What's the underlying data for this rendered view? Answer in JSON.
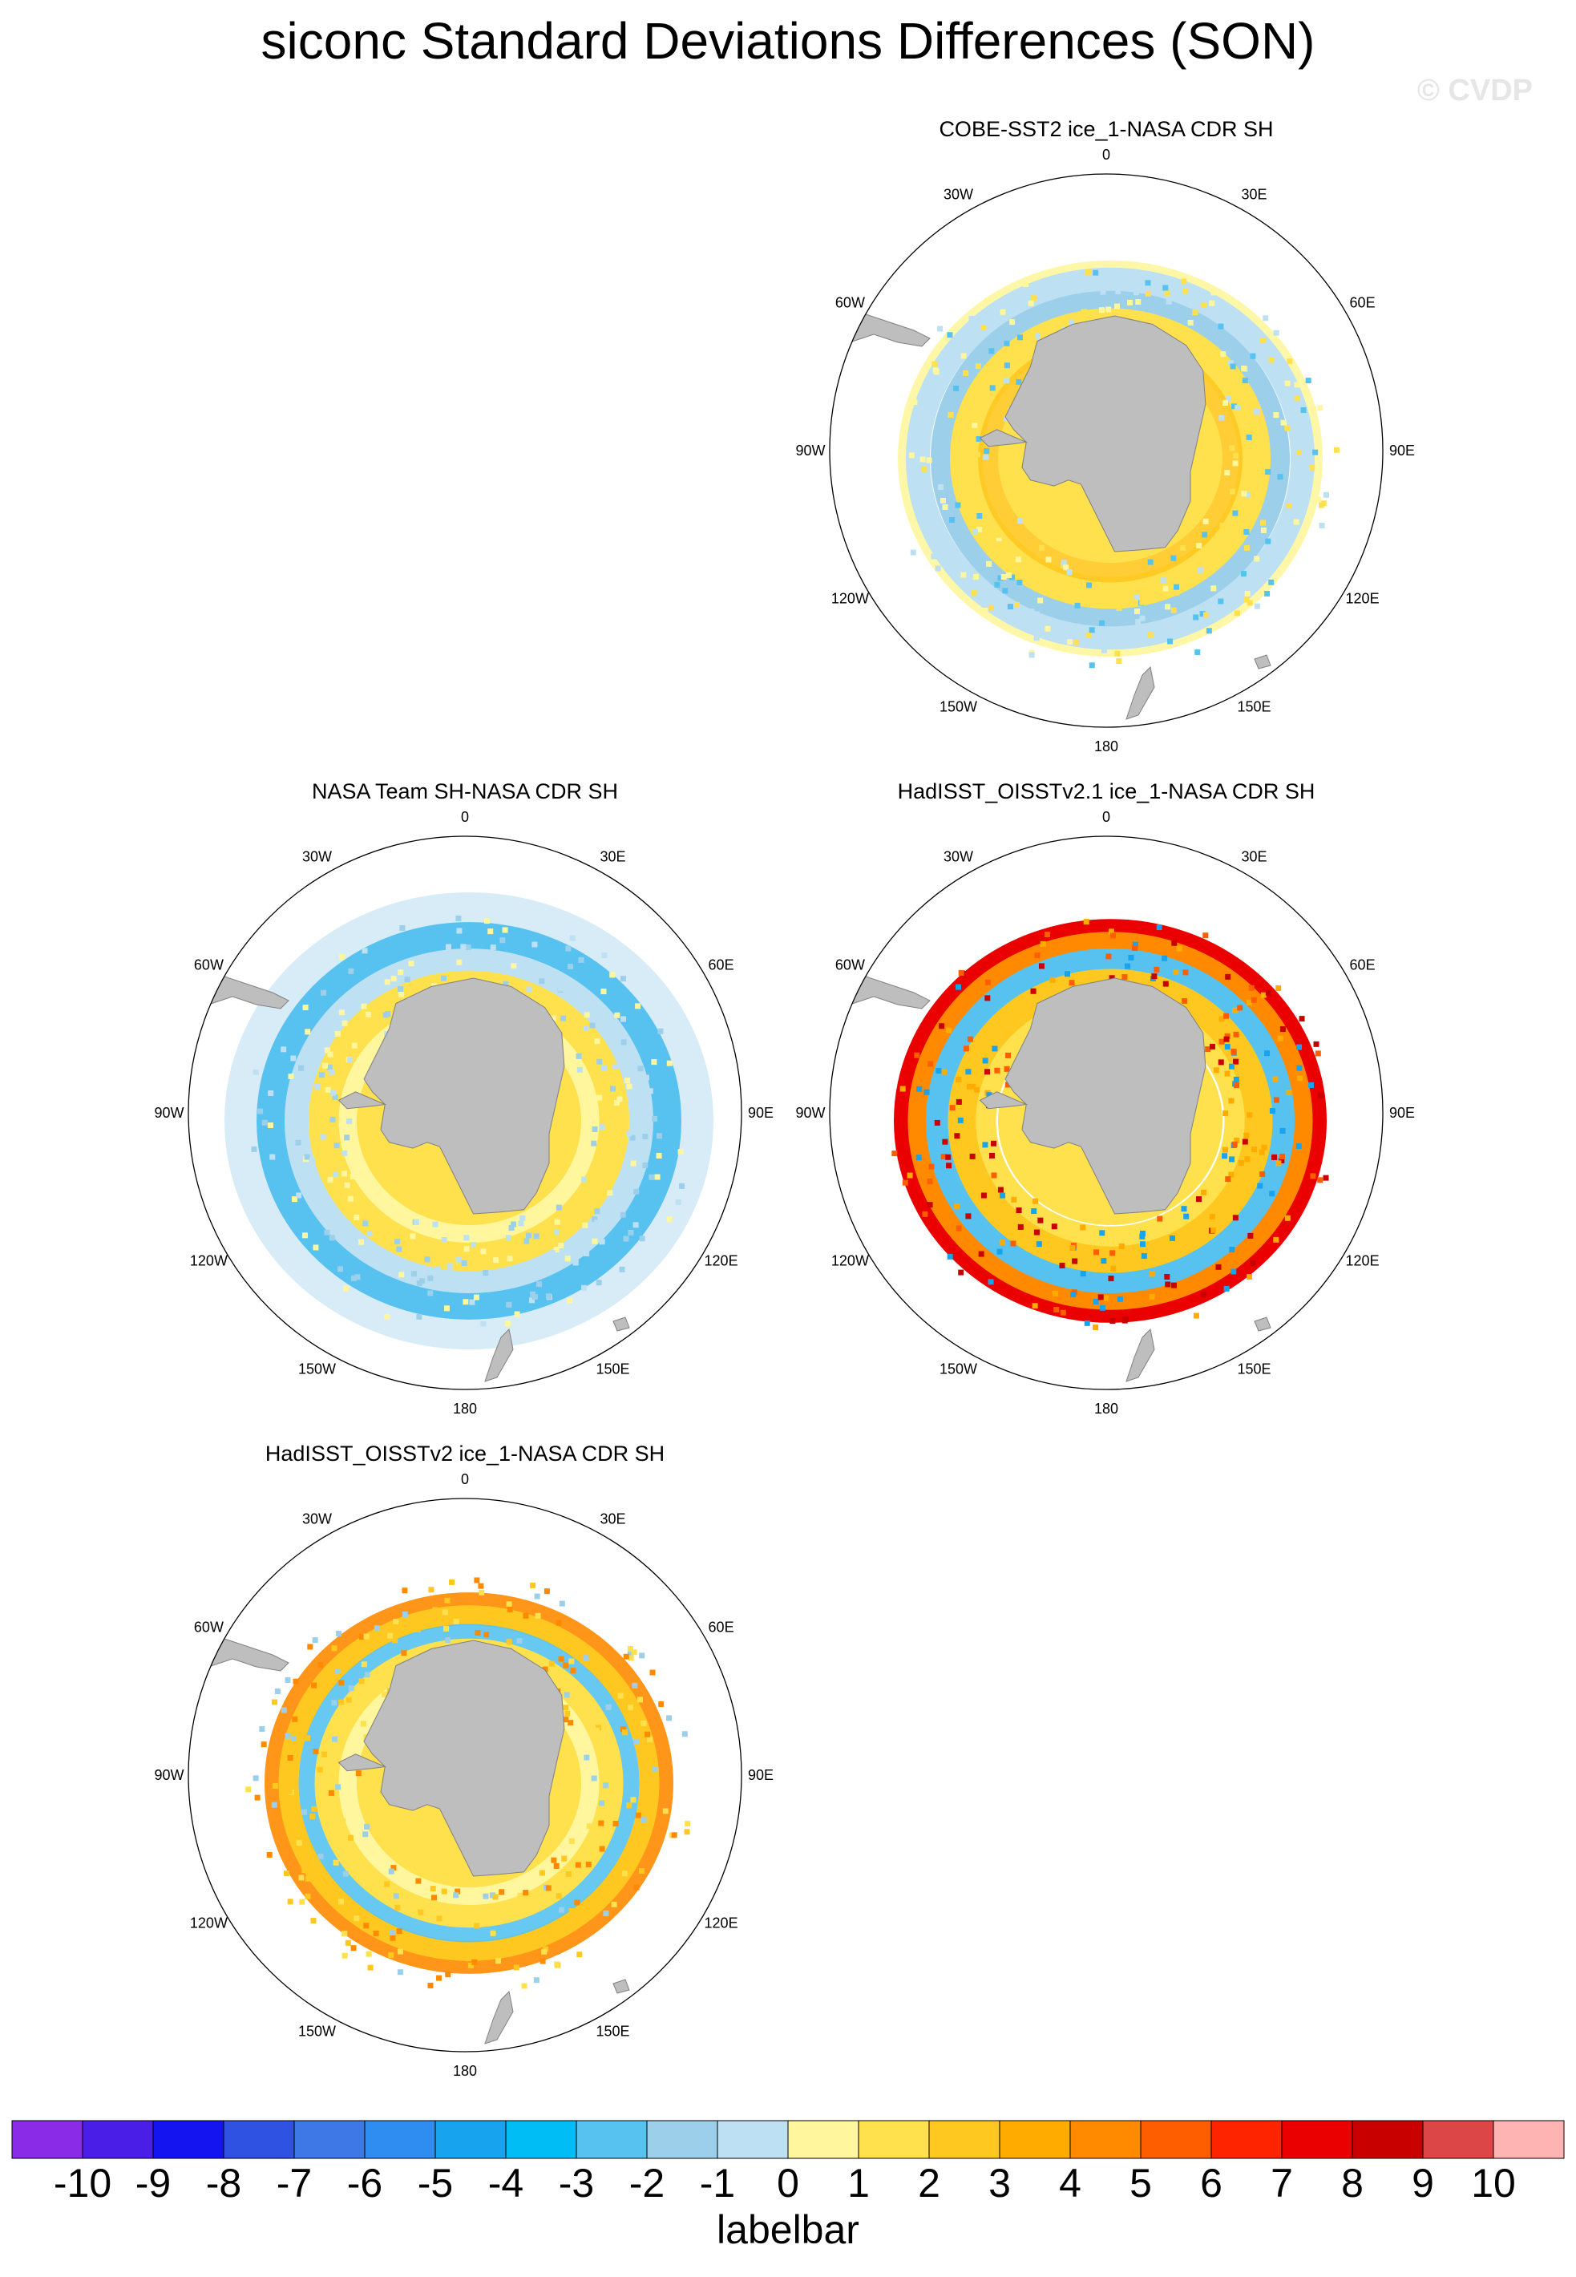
{
  "figure": {
    "title": "siconc Standard Deviations Differences (SON)",
    "watermark": "© CVDP"
  },
  "panels": [
    {
      "id": "cobe",
      "title": "COBE-SST2 ice_1-NASA CDR SH",
      "style": "cobe"
    },
    {
      "id": "nasateam",
      "title": "NASA Team SH-NASA CDR SH",
      "style": "nasateam"
    },
    {
      "id": "hadisst21",
      "title": "HadISST_OISSTv2.1 ice_1-NASA CDR SH",
      "style": "hadisst21"
    },
    {
      "id": "hadisst2",
      "title": "HadISST_OISSTv2 ice_1-NASA CDR SH",
      "style": "hadisst2"
    }
  ],
  "longitude_labels": [
    "0",
    "30E",
    "60E",
    "90E",
    "120E",
    "150E",
    "180",
    "150W",
    "120W",
    "90W",
    "60W",
    "30W"
  ],
  "labelbar": {
    "title": "labelbar",
    "ticks": [
      "-10",
      "-9",
      "-8",
      "-7",
      "-6",
      "-5",
      "-4",
      "-3",
      "-2",
      "-1",
      "0",
      "1",
      "2",
      "3",
      "4",
      "5",
      "6",
      "7",
      "8",
      "9",
      "10"
    ],
    "colors": [
      "#8a2be8",
      "#4b1ee8",
      "#1414f0",
      "#2f52e2",
      "#3e77e6",
      "#2f8cf0",
      "#18a3ee",
      "#00bdf5",
      "#57c2f0",
      "#9ccfe9",
      "#bee0f3",
      "#fff69e",
      "#ffe04d",
      "#ffc820",
      "#ffab00",
      "#ff8a00",
      "#ff5e00",
      "#ff2400",
      "#eb0000",
      "#c80000",
      "#dc4646",
      "#ffb4b4"
    ]
  }
}
